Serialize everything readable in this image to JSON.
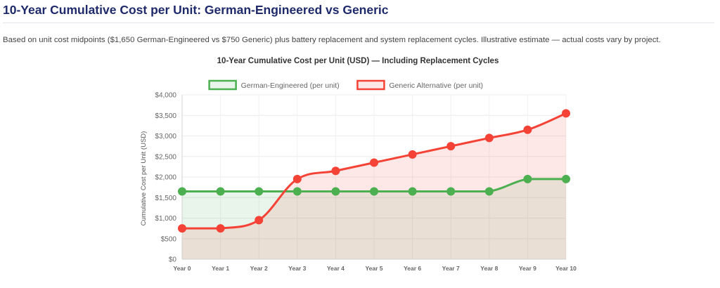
{
  "page": {
    "title": "10-Year Cumulative Cost per Unit: German-Engineered vs Generic",
    "description": "Based on unit cost midpoints ($1,650 German-Engineered vs $750 Generic) plus battery replacement and system replacement cycles. Illustrative estimate — actual costs vary by project."
  },
  "chart_data": {
    "type": "line",
    "title": "10-Year Cumulative Cost per Unit (USD) — Including Replacement Cycles",
    "xlabel": "",
    "ylabel": "Cumulative Cost per Unit (USD)",
    "categories": [
      "Year 0",
      "Year 1",
      "Year 2",
      "Year 3",
      "Year 4",
      "Year 5",
      "Year 6",
      "Year 7",
      "Year 8",
      "Year 9",
      "Year 10"
    ],
    "yticks": [
      "$0",
      "$500",
      "$1,000",
      "$1,500",
      "$2,000",
      "$2,500",
      "$3,000",
      "$3,500",
      "$4,000"
    ],
    "ylim": [
      0,
      4000
    ],
    "grid": true,
    "filled": true,
    "legend_position": "top",
    "series": [
      {
        "name": "German-Engineered (per unit)",
        "color": "#4caf50",
        "fill": "rgba(76,175,80,0.12)",
        "values": [
          1650,
          1650,
          1650,
          1650,
          1650,
          1650,
          1650,
          1650,
          1650,
          1950,
          1950
        ]
      },
      {
        "name": "Generic Alternative (per unit)",
        "color": "#f44336",
        "fill": "rgba(244,67,54,0.12)",
        "values": [
          750,
          750,
          950,
          1950,
          2150,
          2350,
          2550,
          2750,
          2950,
          3150,
          3550
        ]
      }
    ]
  }
}
